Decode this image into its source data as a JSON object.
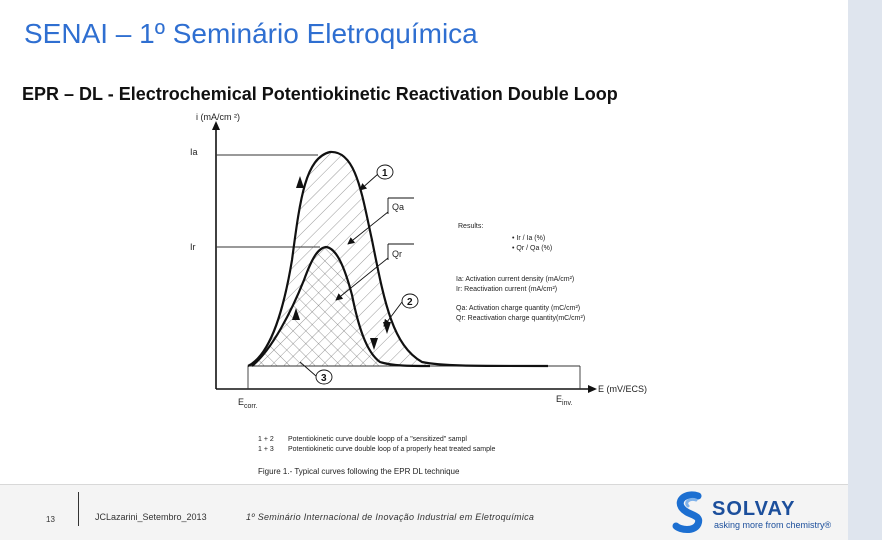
{
  "slide": {
    "title": "SENAI – 1º Seminário Eletroquímica",
    "subtitle": "EPR – DL - Electrochemical Potentiokinetic Reactivation Double Loop"
  },
  "figure": {
    "y_axis_label": "i (mA/cm ²)",
    "x_axis_label": "E (mV/ECS)",
    "label_ia": "Ia",
    "label_ir": "Ir",
    "marker_1": "1",
    "marker_2": "2",
    "marker_3": "3",
    "label_qa": "Qa",
    "label_qr": "Qr",
    "e_corr": "E",
    "e_corr_sub": "corr.",
    "e_inv": "E",
    "e_inv_sub": "inv.",
    "results_heading": "Results:",
    "results": [
      "• Ir / Ia (%)",
      "• Qr / Qa (%)"
    ],
    "definitions_current": [
      "Ia:  Activation current density (mA/cm²)",
      "Ir:  Reactivation current (mA/cm²)"
    ],
    "definitions_charge": [
      "Qa:  Activation charge quantity (mC/cm²)",
      "Qr:  Reactivation charge quantity(mC/cm²)"
    ],
    "legend": [
      {
        "key": "1 + 2",
        "text": "Potentiokinetic curve double loopp of a \"sensitized\" sampl"
      },
      {
        "key": "1 + 3",
        "text": "Potentiokinetic curve double loop of a properly heat treated sample"
      }
    ],
    "caption": "Figure 1.-  Typical curves following the EPR DL technique"
  },
  "footer": {
    "page_number": "13",
    "author": "JCLazarini_Setembro_2013",
    "event": "1º Seminário  Internacional de Inovação  Industrial em  Eletroquímica",
    "brand": "SOLVAY",
    "tagline": "asking more from chemistry®"
  },
  "colors": {
    "title": "#2f6fd1",
    "brand": "#1c4f9c",
    "sidebar": "#dfe5ee"
  }
}
